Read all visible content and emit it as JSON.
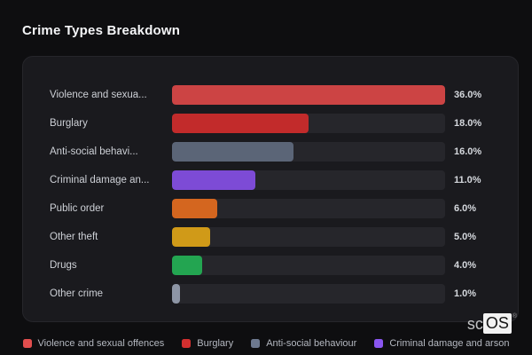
{
  "page": {
    "title": "Crime Types Breakdown"
  },
  "chart_data": {
    "type": "bar",
    "orientation": "horizontal",
    "title": "Crime Types Breakdown",
    "categories": [
      "Violence and sexual offences",
      "Burglary",
      "Anti-social behaviour",
      "Criminal damage and arson",
      "Public order",
      "Other theft",
      "Drugs",
      "Other crime"
    ],
    "display_labels": [
      "Violence and sexua...",
      "Burglary",
      "Anti-social behavi...",
      "Criminal damage an...",
      "Public order",
      "Other theft",
      "Drugs",
      "Other crime"
    ],
    "values": [
      36.0,
      18.0,
      16.0,
      11.0,
      6.0,
      5.0,
      4.0,
      1.0
    ],
    "value_labels": [
      "36.0%",
      "18.0%",
      "16.0%",
      "11.0%",
      "6.0%",
      "5.0%",
      "4.0%",
      "1.0%"
    ],
    "bar_colors": [
      "#cc4444",
      "#c22b2b",
      "#5b6577",
      "#7d4bd6",
      "#d4661f",
      "#d09a18",
      "#23a551",
      "#8d95a5"
    ],
    "xlim": [
      0,
      36
    ],
    "grid": false,
    "legend_position": "bottom"
  },
  "legend": {
    "items": [
      {
        "label": "Violence and sexual offences",
        "color": "#e14e4e"
      },
      {
        "label": "Burglary",
        "color": "#d32f2f"
      },
      {
        "label": "Anti-social behaviour",
        "color": "#6e7a90"
      },
      {
        "label": "Criminal damage and arson",
        "color": "#8a56f0"
      }
    ]
  },
  "watermark": {
    "prefix": "sc",
    "suffix": "OS",
    "registered": "®"
  },
  "colors": {
    "page_bg": "#0e0e10",
    "card_bg": "#1a1a1e",
    "track_bg": "#26262b",
    "title_text": "#f4f5f7",
    "label_text": "#cdd0d6",
    "value_text": "#d5d8dd",
    "legend_text": "#b4b8c0"
  }
}
